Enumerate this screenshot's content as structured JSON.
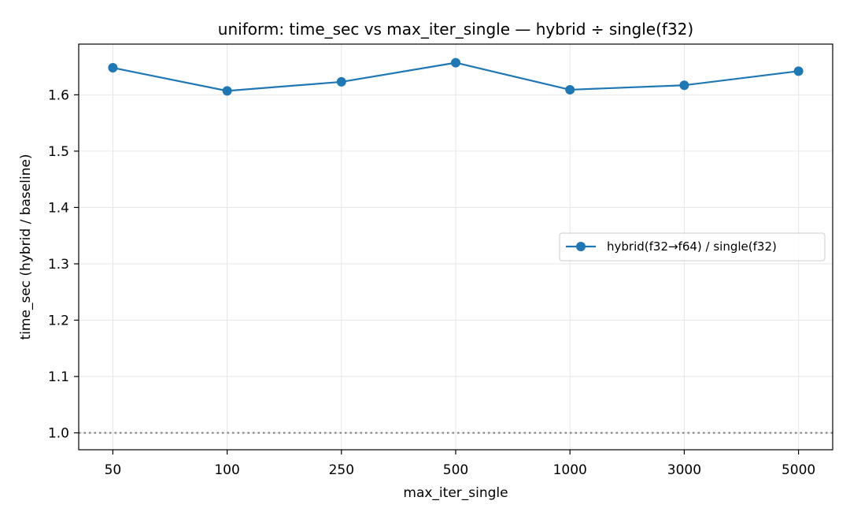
{
  "chart_data": {
    "type": "line",
    "title": "uniform: time_sec vs max_iter_single — hybrid ÷ single(f32)",
    "xlabel": "max_iter_single",
    "ylabel": "time_sec (hybrid / baseline)",
    "categories": [
      "50",
      "100",
      "250",
      "500",
      "1000",
      "3000",
      "5000"
    ],
    "series": [
      {
        "name": "hybrid(f32→f64) / single(f32)",
        "color": "#1f77b4",
        "marker": "circle",
        "values": [
          1.648,
          1.607,
          1.623,
          1.657,
          1.609,
          1.617,
          1.642
        ]
      }
    ],
    "ylim": [
      0.97,
      1.69
    ],
    "yticks": [
      1.0,
      1.1,
      1.2,
      1.3,
      1.4,
      1.5,
      1.6
    ],
    "ytick_labels": [
      "1.0",
      "1.1",
      "1.2",
      "1.3",
      "1.4",
      "1.5",
      "1.6"
    ],
    "reference_line": {
      "y": 1.0,
      "style": "dotted",
      "color": "#808080"
    },
    "grid": true,
    "legend_position": "center-right"
  }
}
